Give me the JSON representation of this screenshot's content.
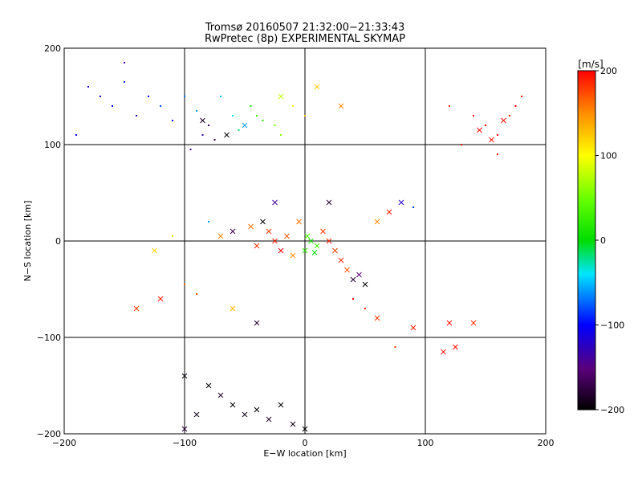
{
  "chart_data": {
    "type": "scatter",
    "title": "Tromsø 20160507 21:32:00−21:33:43",
    "subtitle": "RwPretec (8p) EXPERIMENTAL SKYMAP",
    "xlabel": "E−W location [km]",
    "ylabel": "N−S location [km]",
    "xlim": [
      -200,
      200
    ],
    "ylim": [
      -200,
      200
    ],
    "xticks": [
      -200,
      -100,
      0,
      100,
      200
    ],
    "yticks": [
      -200,
      -100,
      0,
      100,
      200
    ],
    "xtick_labels": [
      "−200",
      "−100",
      "0",
      "100",
      "200"
    ],
    "ytick_labels": [
      "−200",
      "−100",
      "0",
      "100",
      "200"
    ],
    "grid": true,
    "colorbar": {
      "label": "[m/s]",
      "range": [
        -200,
        200
      ],
      "ticks": [
        200,
        100,
        0,
        -100,
        -200
      ],
      "tick_labels": [
        "200",
        "100",
        "0",
        "−100",
        "−200"
      ],
      "colormap": "rainbow (black → purple → blue → cyan → green → yellow → red)"
    },
    "markers": {
      "dot": "small points",
      "cross": "× markers (strong echoes)"
    },
    "points": [
      [
        -180,
        160,
        -120,
        "dot"
      ],
      [
        -170,
        150,
        -110,
        "dot"
      ],
      [
        -160,
        140,
        -100,
        "dot"
      ],
      [
        -150,
        165,
        -90,
        "dot"
      ],
      [
        -140,
        130,
        -130,
        "dot"
      ],
      [
        -130,
        150,
        -100,
        "dot"
      ],
      [
        -120,
        140,
        -80,
        "dot"
      ],
      [
        -110,
        125,
        -95,
        "dot"
      ],
      [
        -100,
        150,
        -70,
        "dot"
      ],
      [
        -90,
        135,
        -60,
        "dot"
      ],
      [
        -85,
        110,
        -140,
        "dot"
      ],
      [
        -80,
        120,
        -180,
        "dot"
      ],
      [
        -75,
        105,
        -190,
        "dot"
      ],
      [
        -95,
        95,
        -150,
        "dot"
      ],
      [
        -70,
        150,
        -50,
        "dot"
      ],
      [
        -60,
        130,
        -40,
        "dot"
      ],
      [
        -55,
        115,
        -20,
        "dot"
      ],
      [
        -45,
        140,
        10,
        "dot"
      ],
      [
        -40,
        130,
        30,
        "dot"
      ],
      [
        -35,
        125,
        20,
        "dot"
      ],
      [
        -25,
        120,
        50,
        "dot"
      ],
      [
        -20,
        110,
        60,
        "dot"
      ],
      [
        -10,
        140,
        100,
        "dot"
      ],
      [
        0,
        130,
        120,
        "dot"
      ],
      [
        -50,
        120,
        -60,
        "cross"
      ],
      [
        -65,
        110,
        -200,
        "cross"
      ],
      [
        -85,
        125,
        -190,
        "cross"
      ],
      [
        -20,
        150,
        80,
        "cross"
      ],
      [
        10,
        160,
        120,
        "cross"
      ],
      [
        30,
        140,
        150,
        "cross"
      ],
      [
        -150,
        185,
        -140,
        "dot"
      ],
      [
        -190,
        110,
        -110,
        "dot"
      ],
      [
        120,
        140,
        180,
        "dot"
      ],
      [
        140,
        130,
        190,
        "dot"
      ],
      [
        150,
        120,
        195,
        "dot"
      ],
      [
        160,
        110,
        200,
        "dot"
      ],
      [
        170,
        130,
        185,
        "dot"
      ],
      [
        180,
        150,
        190,
        "dot"
      ],
      [
        130,
        100,
        200,
        "dot"
      ],
      [
        160,
        90,
        190,
        "dot"
      ],
      [
        145,
        115,
        200,
        "cross"
      ],
      [
        165,
        125,
        195,
        "cross"
      ],
      [
        155,
        105,
        190,
        "cross"
      ],
      [
        175,
        140,
        200,
        "dot"
      ],
      [
        -30,
        10,
        180,
        "cross"
      ],
      [
        -25,
        0,
        190,
        "cross"
      ],
      [
        -20,
        -10,
        200,
        "cross"
      ],
      [
        -15,
        5,
        170,
        "cross"
      ],
      [
        -40,
        -5,
        185,
        "cross"
      ],
      [
        -45,
        15,
        160,
        "cross"
      ],
      [
        -10,
        -15,
        150,
        "cross"
      ],
      [
        0,
        -10,
        20,
        "cross"
      ],
      [
        5,
        0,
        10,
        "cross"
      ],
      [
        10,
        -5,
        30,
        "cross"
      ],
      [
        2,
        5,
        40,
        "cross"
      ],
      [
        8,
        -12,
        0,
        "cross"
      ],
      [
        15,
        10,
        180,
        "cross"
      ],
      [
        20,
        0,
        190,
        "cross"
      ],
      [
        25,
        -10,
        175,
        "cross"
      ],
      [
        30,
        -20,
        185,
        "cross"
      ],
      [
        35,
        -30,
        170,
        "cross"
      ],
      [
        40,
        -40,
        -190,
        "cross"
      ],
      [
        45,
        -35,
        -170,
        "cross"
      ],
      [
        50,
        -45,
        -200,
        "cross"
      ],
      [
        -5,
        20,
        160,
        "cross"
      ],
      [
        -35,
        20,
        -200,
        "cross"
      ],
      [
        -60,
        10,
        -180,
        "cross"
      ],
      [
        -70,
        5,
        150,
        "cross"
      ],
      [
        60,
        20,
        150,
        "cross"
      ],
      [
        70,
        30,
        190,
        "cross"
      ],
      [
        -120,
        -60,
        190,
        "cross"
      ],
      [
        -140,
        -70,
        180,
        "cross"
      ],
      [
        -100,
        -45,
        160,
        "dot"
      ],
      [
        -90,
        -55,
        170,
        "dot"
      ],
      [
        40,
        -60,
        200,
        "dot"
      ],
      [
        50,
        -70,
        190,
        "dot"
      ],
      [
        60,
        -80,
        180,
        "cross"
      ],
      [
        90,
        -90,
        190,
        "cross"
      ],
      [
        120,
        -85,
        195,
        "cross"
      ],
      [
        140,
        -85,
        185,
        "cross"
      ],
      [
        125,
        -110,
        200,
        "cross"
      ],
      [
        115,
        -115,
        190,
        "cross"
      ],
      [
        75,
        -110,
        180,
        "dot"
      ],
      [
        -40,
        -85,
        -190,
        "cross"
      ],
      [
        -100,
        -140,
        -195,
        "cross"
      ],
      [
        -80,
        -150,
        -200,
        "cross"
      ],
      [
        -70,
        -160,
        -190,
        "cross"
      ],
      [
        -60,
        -170,
        -200,
        "cross"
      ],
      [
        -50,
        -180,
        -195,
        "cross"
      ],
      [
        -40,
        -175,
        -200,
        "cross"
      ],
      [
        -30,
        -185,
        -190,
        "cross"
      ],
      [
        -20,
        -170,
        -200,
        "cross"
      ],
      [
        -10,
        -190,
        -195,
        "cross"
      ],
      [
        0,
        -195,
        -200,
        "cross"
      ],
      [
        -100,
        -195,
        -190,
        "cross"
      ],
      [
        -90,
        -180,
        -195,
        "cross"
      ],
      [
        -60,
        -70,
        130,
        "cross"
      ],
      [
        -125,
        -10,
        120,
        "cross"
      ],
      [
        -80,
        20,
        -60,
        "dot"
      ],
      [
        -110,
        5,
        90,
        "dot"
      ],
      [
        80,
        40,
        -130,
        "cross"
      ],
      [
        90,
        35,
        -80,
        "dot"
      ],
      [
        -25,
        40,
        -150,
        "cross"
      ],
      [
        20,
        40,
        -190,
        "cross"
      ]
    ]
  }
}
